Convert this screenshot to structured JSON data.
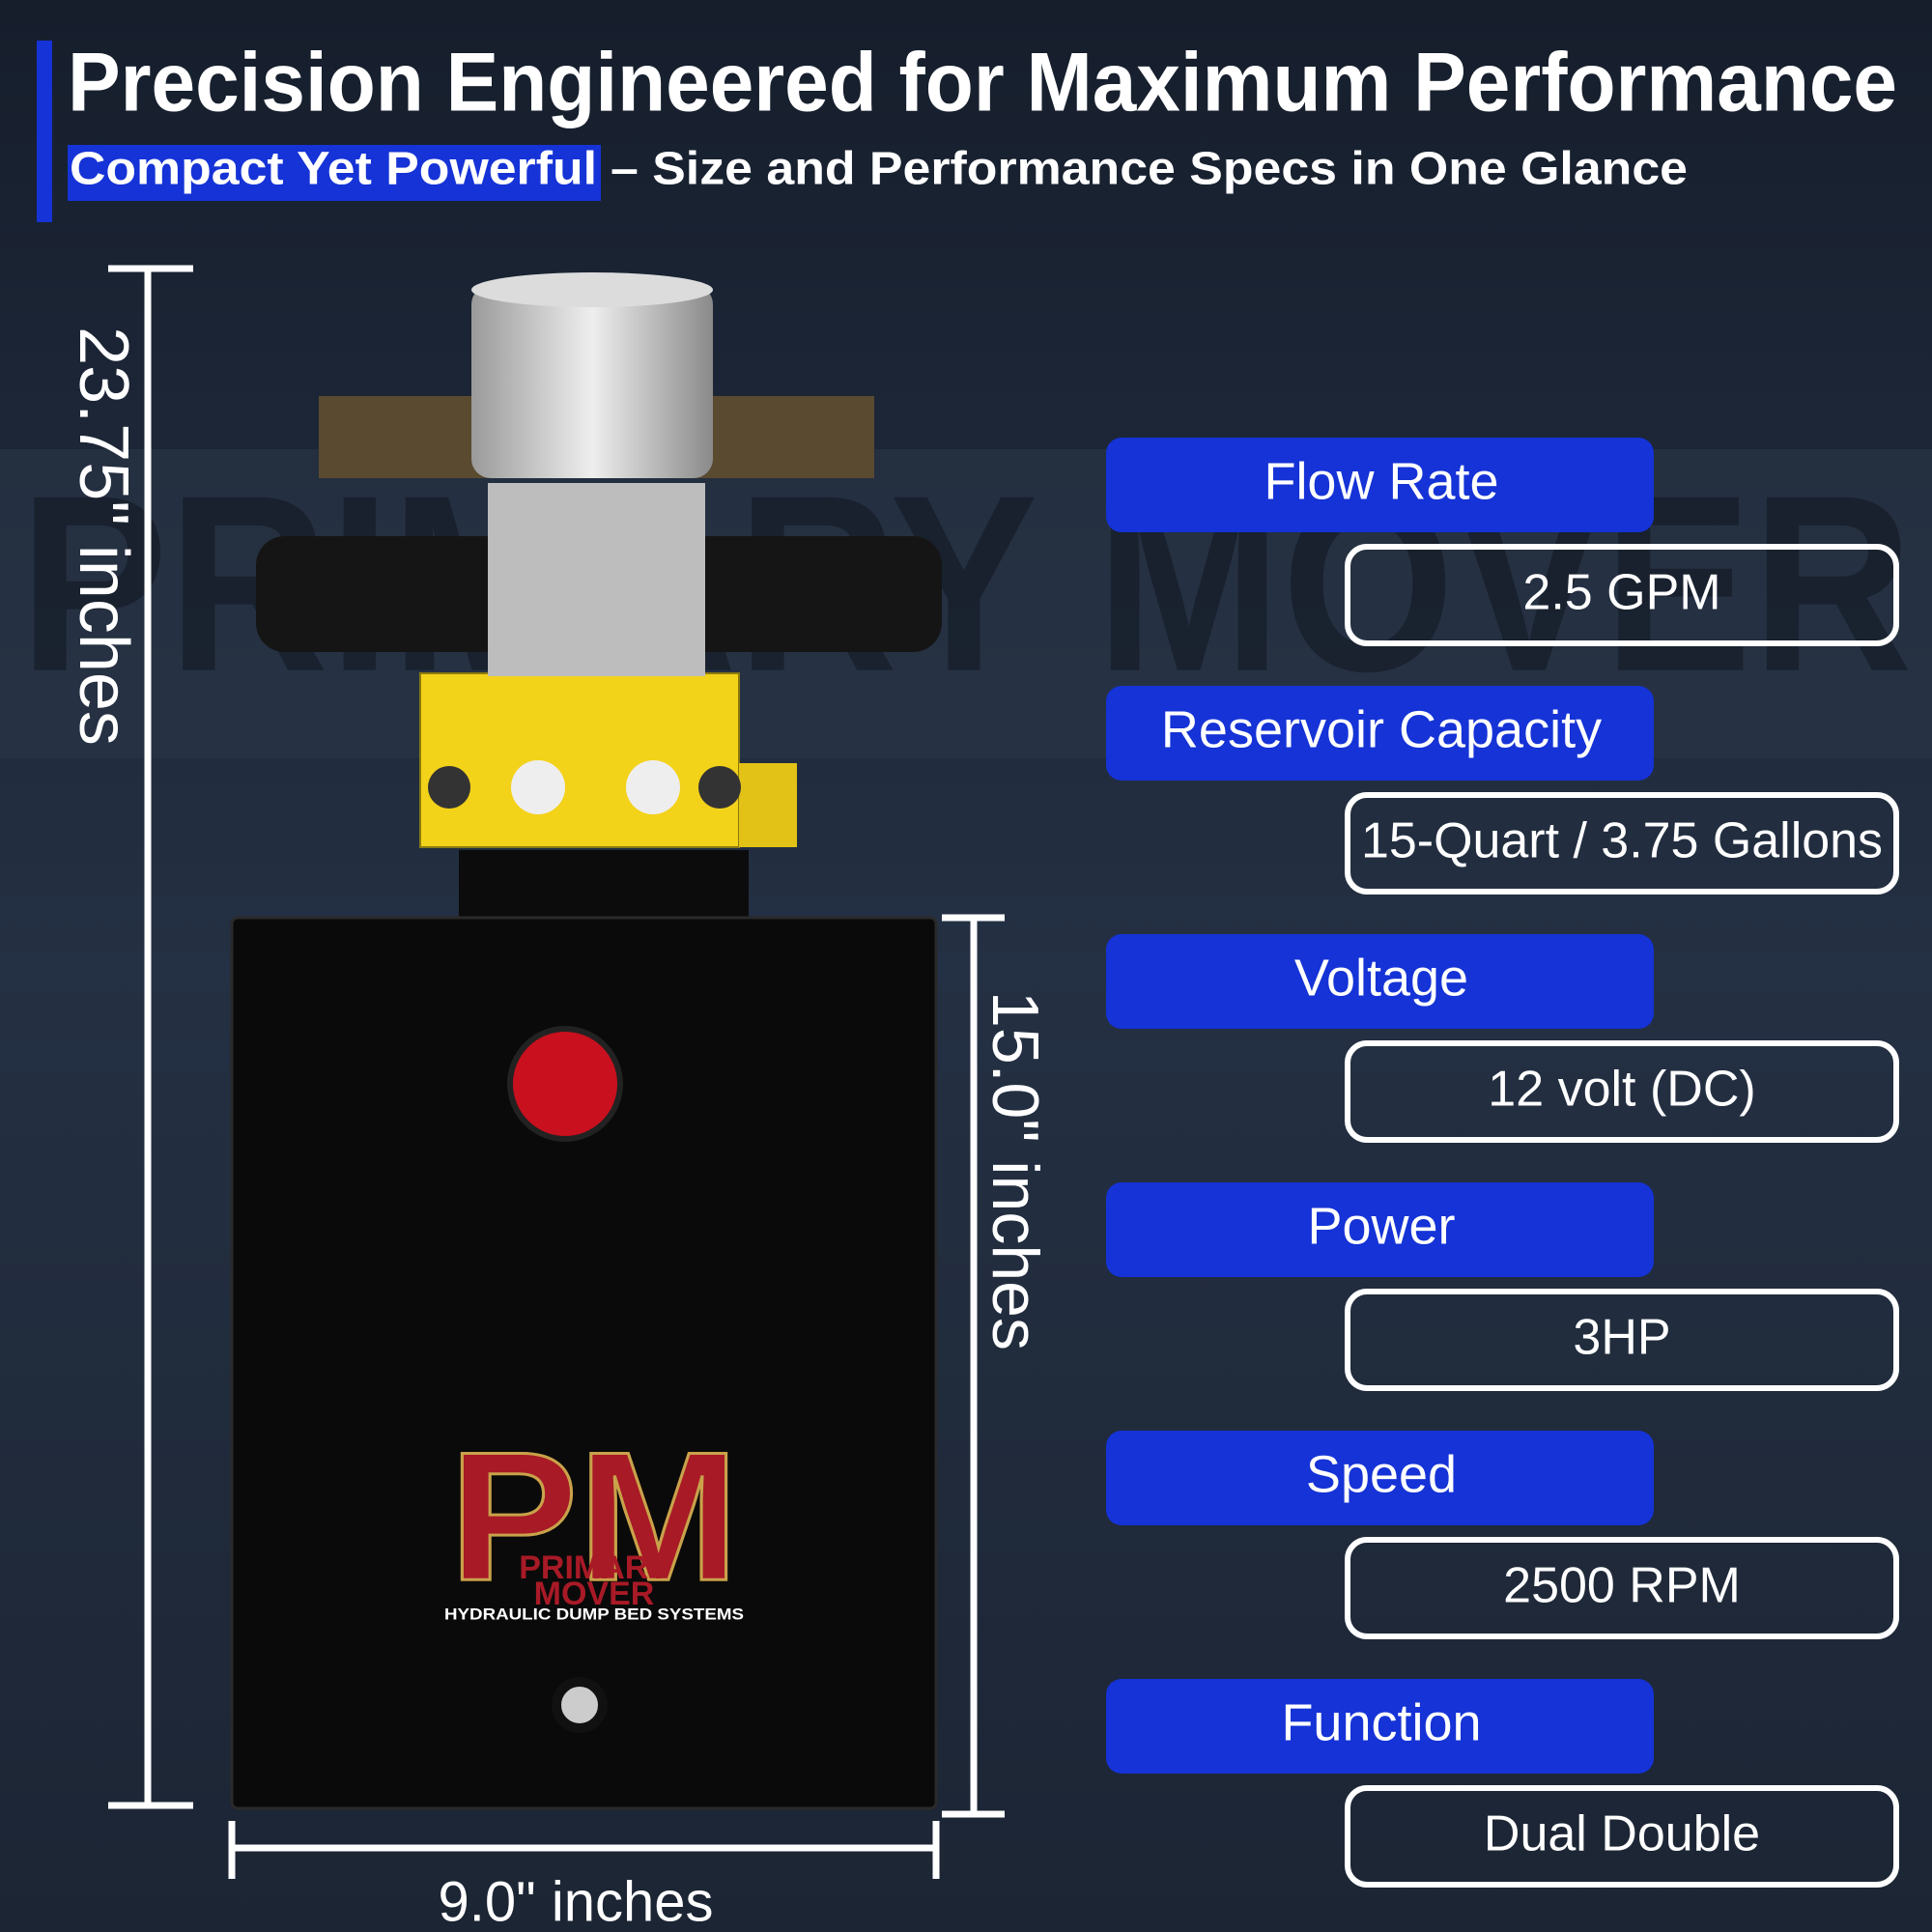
{
  "header": {
    "title": "Precision Engineered for Maximum Performance",
    "subtitle_highlight": "Compact Yet Powerful",
    "subtitle_rest": "– Size and Performance Specs in One Glance"
  },
  "watermark": "PRIMARY MOVER",
  "dimensions": {
    "total_height": "23.75\" inches",
    "tank_height": "15.0\" inches",
    "width": "9.0\" inches"
  },
  "logo": {
    "mark": "PM",
    "brand_line1": "PRIMARY",
    "brand_line2": "MOVER",
    "tagline": "HYDRAULIC DUMP BED SYSTEMS"
  },
  "specs": [
    {
      "label": "Flow Rate",
      "value": "2.5 GPM"
    },
    {
      "label": "Reservoir Capacity",
      "value": "15-Quart / 3.75 Gallons"
    },
    {
      "label": "Voltage",
      "value": "12 volt (DC)"
    },
    {
      "label": "Power",
      "value": "3HP"
    },
    {
      "label": "Speed",
      "value": "2500 RPM"
    },
    {
      "label": "Function",
      "value": "Dual Double"
    }
  ]
}
